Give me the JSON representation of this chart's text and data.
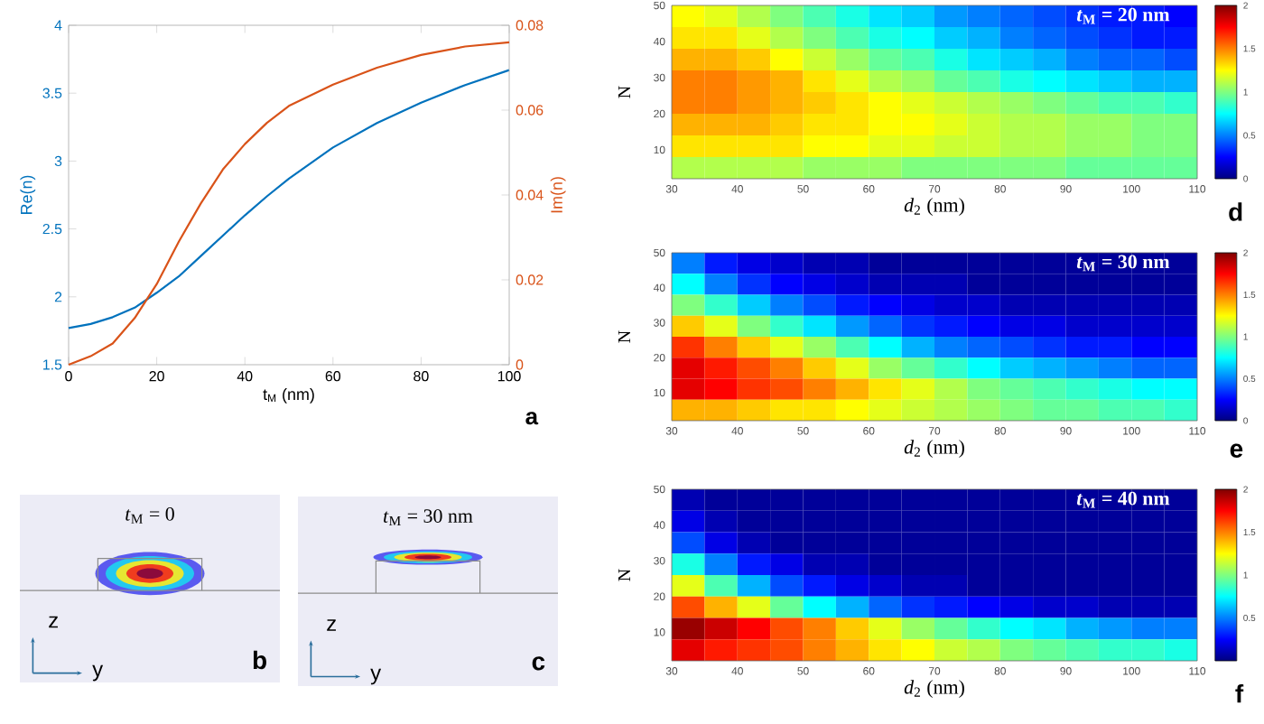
{
  "chart_data": [
    {
      "type": "line",
      "xlabel": "t$_{M}$ (nm)",
      "ylabel": "Re(n)",
      "y2label": "Im(n)",
      "annotations": [
        "a"
      ],
      "x": [
        0,
        5,
        10,
        15,
        20,
        25,
        30,
        35,
        40,
        45,
        50,
        60,
        70,
        80,
        90,
        100
      ],
      "series": [
        {
          "color": "#0072bd",
          "values": [
            1.77,
            1.8,
            1.85,
            1.92,
            2.03,
            2.15,
            2.3,
            2.45,
            2.6,
            2.74,
            2.87,
            3.1,
            3.28,
            3.43,
            3.56,
            3.67
          ]
        },
        {
          "color": "#d95319",
          "axis": "y2",
          "values": [
            0,
            0.002,
            0.005,
            0.011,
            0.019,
            0.029,
            0.038,
            0.046,
            0.052,
            0.057,
            0.061,
            0.066,
            0.07,
            0.073,
            0.075,
            0.076
          ]
        }
      ],
      "xlim": [
        0,
        100
      ],
      "xticks": [
        0,
        20,
        40,
        60,
        80,
        100
      ],
      "ylim": [
        1.5,
        4
      ],
      "yticks": [
        1.5,
        2,
        2.5,
        3,
        3.5,
        4
      ],
      "y2lim": [
        0,
        0.08
      ],
      "y2ticks": [
        0,
        0.02,
        0.04,
        0.06,
        0.08
      ]
    },
    {
      "type": "other",
      "title": "*t*$_{M}$  =  0",
      "annotations": [
        "z",
        "y",
        "b"
      ]
    },
    {
      "type": "other",
      "title": "*t*$_{M}$  = 30 nm",
      "annotations": [
        "z",
        "y",
        "c"
      ]
    },
    {
      "type": "heatmap",
      "title": "*t*$_{M}$  = 20 nm",
      "xlabel": "*d*$_{2}$ (nm)",
      "ylabel": "N",
      "annotations": [
        "d"
      ],
      "x": [
        32.5,
        37.5,
        42.5,
        47.5,
        52.5,
        57.5,
        62.5,
        67.5,
        72.5,
        77.5,
        82.5,
        87.5,
        92.5,
        97.5,
        102.5,
        107.5
      ],
      "y": [
        47,
        41,
        35,
        29,
        23,
        17,
        11,
        5
      ],
      "cells": [
        [
          1.25,
          1.2,
          1.1,
          1.0,
          0.9,
          0.8,
          0.7,
          0.65,
          0.55,
          0.5,
          0.45,
          0.4,
          0.35,
          0.3,
          0.3,
          0.25
        ],
        [
          1.3,
          1.3,
          1.2,
          1.1,
          1.0,
          0.9,
          0.8,
          0.75,
          0.65,
          0.6,
          0.5,
          0.45,
          0.4,
          0.35,
          0.3,
          0.3
        ],
        [
          1.4,
          1.4,
          1.35,
          1.25,
          1.15,
          1.05,
          0.95,
          0.9,
          0.8,
          0.7,
          0.65,
          0.6,
          0.5,
          0.45,
          0.45,
          0.4
        ],
        [
          1.5,
          1.5,
          1.45,
          1.4,
          1.3,
          1.2,
          1.1,
          1.05,
          0.95,
          0.9,
          0.8,
          0.75,
          0.7,
          0.65,
          0.6,
          0.6
        ],
        [
          1.5,
          1.5,
          1.45,
          1.4,
          1.35,
          1.3,
          1.25,
          1.2,
          1.15,
          1.1,
          1.05,
          1.0,
          0.95,
          0.9,
          0.9,
          0.85
        ],
        [
          1.4,
          1.4,
          1.4,
          1.35,
          1.3,
          1.3,
          1.25,
          1.25,
          1.2,
          1.15,
          1.1,
          1.1,
          1.05,
          1.05,
          1.0,
          1.0
        ],
        [
          1.3,
          1.3,
          1.3,
          1.3,
          1.25,
          1.25,
          1.2,
          1.2,
          1.15,
          1.15,
          1.1,
          1.1,
          1.05,
          1.05,
          1.0,
          1.0
        ],
        [
          1.1,
          1.1,
          1.1,
          1.1,
          1.05,
          1.05,
          1.05,
          1.0,
          1.0,
          1.0,
          1.0,
          1.0,
          0.95,
          0.95,
          0.95,
          0.95
        ]
      ],
      "xlim": [
        30,
        110
      ],
      "xticks": [
        30,
        40,
        50,
        60,
        70,
        80,
        90,
        100,
        110
      ],
      "ylim": [
        2,
        50
      ],
      "yticks": [
        10,
        20,
        30,
        40,
        50
      ],
      "clim": [
        0,
        2
      ],
      "cticks": [
        0,
        0.5,
        1,
        1.5,
        2
      ]
    },
    {
      "type": "heatmap",
      "title": "*t*$_{M}$  = 30 nm",
      "xlabel": "*d*$_{2}$ (nm)",
      "ylabel": "N",
      "annotations": [
        "e"
      ],
      "x": [
        32.5,
        37.5,
        42.5,
        47.5,
        52.5,
        57.5,
        62.5,
        67.5,
        72.5,
        77.5,
        82.5,
        87.5,
        92.5,
        97.5,
        102.5,
        107.5
      ],
      "y": [
        47,
        41,
        35,
        29,
        23,
        17,
        11,
        5
      ],
      "cells": [
        [
          0.5,
          0.3,
          0.2,
          0.15,
          0.1,
          0.1,
          0.05,
          0.05,
          0.05,
          0.05,
          0.05,
          0.05,
          0.05,
          0.05,
          0.05,
          0.05
        ],
        [
          0.75,
          0.5,
          0.35,
          0.25,
          0.2,
          0.15,
          0.1,
          0.1,
          0.1,
          0.05,
          0.05,
          0.05,
          0.05,
          0.05,
          0.05,
          0.05
        ],
        [
          1.0,
          0.85,
          0.65,
          0.5,
          0.4,
          0.3,
          0.25,
          0.2,
          0.15,
          0.15,
          0.1,
          0.1,
          0.1,
          0.1,
          0.1,
          0.1
        ],
        [
          1.35,
          1.2,
          1.0,
          0.85,
          0.7,
          0.55,
          0.45,
          0.35,
          0.3,
          0.25,
          0.2,
          0.2,
          0.15,
          0.15,
          0.15,
          0.15
        ],
        [
          1.65,
          1.5,
          1.35,
          1.2,
          1.05,
          0.9,
          0.75,
          0.6,
          0.5,
          0.45,
          0.4,
          0.35,
          0.3,
          0.3,
          0.25,
          0.25
        ],
        [
          1.8,
          1.7,
          1.6,
          1.5,
          1.35,
          1.2,
          1.05,
          0.95,
          0.85,
          0.75,
          0.65,
          0.6,
          0.55,
          0.5,
          0.45,
          0.45
        ],
        [
          1.8,
          1.75,
          1.65,
          1.6,
          1.5,
          1.4,
          1.3,
          1.2,
          1.1,
          1.0,
          0.95,
          0.9,
          0.85,
          0.8,
          0.75,
          0.75
        ],
        [
          1.4,
          1.4,
          1.35,
          1.3,
          1.3,
          1.25,
          1.2,
          1.15,
          1.1,
          1.05,
          1.0,
          0.95,
          0.95,
          0.9,
          0.9,
          0.85
        ]
      ],
      "xlim": [
        30,
        110
      ],
      "xticks": [
        30,
        40,
        50,
        60,
        70,
        80,
        90,
        100,
        110
      ],
      "ylim": [
        2,
        50
      ],
      "yticks": [
        10,
        20,
        30,
        40,
        50
      ],
      "clim": [
        0,
        2
      ],
      "cticks": [
        0,
        0.5,
        1,
        1.5,
        2
      ]
    },
    {
      "type": "heatmap",
      "title": "*t*$_{M}$  = 40 nm",
      "xlabel": "*d*$_{2}$ (nm)",
      "ylabel": "N",
      "annotations": [
        "f"
      ],
      "x": [
        32.5,
        37.5,
        42.5,
        47.5,
        52.5,
        57.5,
        62.5,
        67.5,
        72.5,
        77.5,
        82.5,
        87.5,
        92.5,
        97.5,
        102.5,
        107.5
      ],
      "y": [
        47,
        41,
        35,
        29,
        23,
        17,
        11,
        5
      ],
      "cells": [
        [
          0.1,
          0.05,
          0.05,
          0.05,
          0.05,
          0.05,
          0.05,
          0.05,
          0.05,
          0.05,
          0.05,
          0.05,
          0.05,
          0.05,
          0.05,
          0.05
        ],
        [
          0.2,
          0.1,
          0.05,
          0.05,
          0.05,
          0.05,
          0.05,
          0.05,
          0.05,
          0.05,
          0.05,
          0.05,
          0.05,
          0.05,
          0.05,
          0.05
        ],
        [
          0.4,
          0.2,
          0.1,
          0.05,
          0.05,
          0.05,
          0.05,
          0.05,
          0.05,
          0.05,
          0.05,
          0.05,
          0.05,
          0.05,
          0.05,
          0.05
        ],
        [
          0.8,
          0.5,
          0.3,
          0.2,
          0.1,
          0.1,
          0.05,
          0.05,
          0.05,
          0.05,
          0.05,
          0.05,
          0.05,
          0.05,
          0.05,
          0.05
        ],
        [
          1.2,
          0.9,
          0.6,
          0.4,
          0.3,
          0.2,
          0.15,
          0.1,
          0.1,
          0.05,
          0.05,
          0.05,
          0.05,
          0.05,
          0.05,
          0.05
        ],
        [
          1.6,
          1.4,
          1.2,
          0.95,
          0.75,
          0.6,
          0.45,
          0.35,
          0.3,
          0.25,
          0.2,
          0.15,
          0.15,
          0.1,
          0.1,
          0.1
        ],
        [
          1.95,
          1.85,
          1.75,
          1.6,
          1.5,
          1.35,
          1.2,
          1.05,
          0.95,
          0.85,
          0.75,
          0.7,
          0.6,
          0.55,
          0.5,
          0.5
        ],
        [
          1.8,
          1.7,
          1.65,
          1.6,
          1.5,
          1.4,
          1.3,
          1.25,
          1.15,
          1.1,
          1.0,
          0.95,
          0.9,
          0.85,
          0.85,
          0.8
        ]
      ],
      "xlim": [
        30,
        110
      ],
      "xticks": [
        30,
        40,
        50,
        60,
        70,
        80,
        90,
        100,
        110
      ],
      "ylim": [
        2,
        50
      ],
      "yticks": [
        10,
        20,
        30,
        40,
        50
      ],
      "clim": [
        0,
        2
      ],
      "cticks": [
        0.5,
        1,
        1.5,
        2
      ]
    }
  ]
}
